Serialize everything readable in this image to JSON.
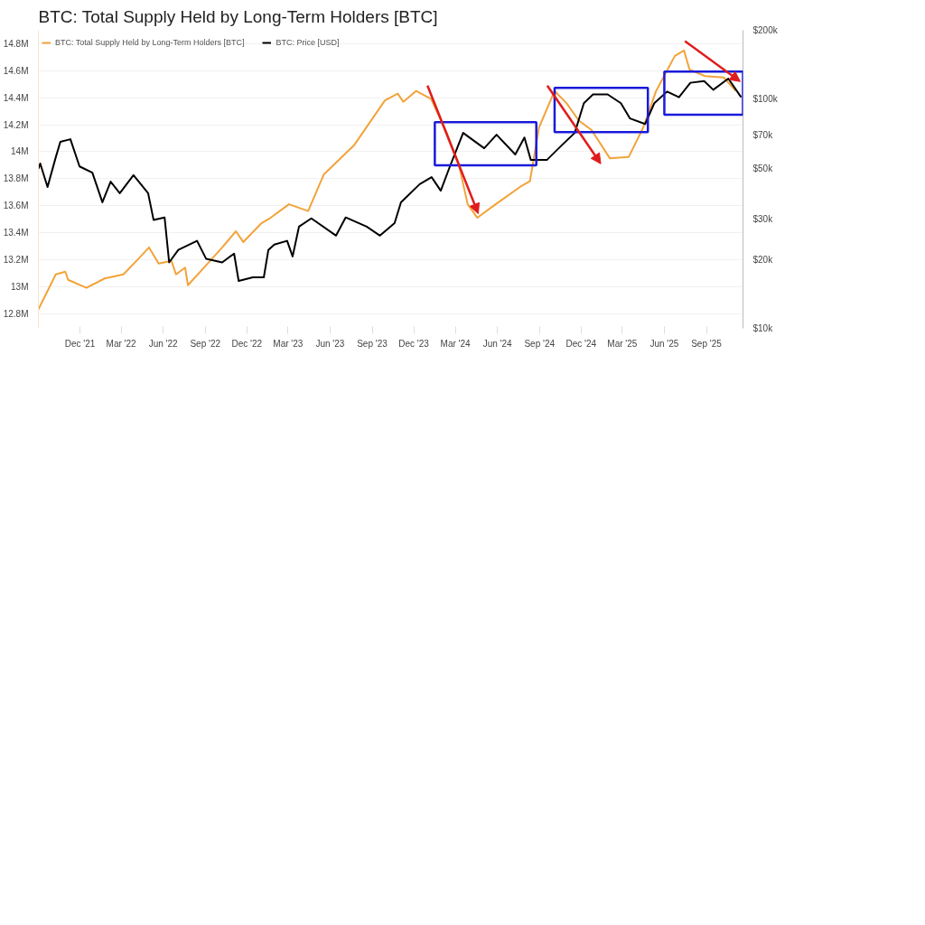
{
  "chart_data": {
    "type": "line",
    "title": "BTC: Total Supply Held by Long-Term Holders [BTC]",
    "xlim": [
      "2021-09-01",
      "2025-11-20"
    ],
    "xticks": [
      {
        "value": "2021-12-01",
        "label": "Dec '21"
      },
      {
        "value": "2022-03-01",
        "label": "Mar '22"
      },
      {
        "value": "2022-06-01",
        "label": "Jun '22"
      },
      {
        "value": "2022-09-01",
        "label": "Sep '22"
      },
      {
        "value": "2022-12-01",
        "label": "Dec '22"
      },
      {
        "value": "2023-03-01",
        "label": "Mar '23"
      },
      {
        "value": "2023-06-01",
        "label": "Jun '23"
      },
      {
        "value": "2023-09-01",
        "label": "Sep '23"
      },
      {
        "value": "2023-12-01",
        "label": "Dec '23"
      },
      {
        "value": "2024-03-01",
        "label": "Mar '24"
      },
      {
        "value": "2024-06-01",
        "label": "Jun '24"
      },
      {
        "value": "2024-09-01",
        "label": "Sep '24"
      },
      {
        "value": "2024-12-01",
        "label": "Dec '24"
      },
      {
        "value": "2025-03-01",
        "label": "Mar '25"
      },
      {
        "value": "2025-06-01",
        "label": "Jun '25"
      },
      {
        "value": "2025-09-01",
        "label": "Sep '25"
      }
    ],
    "ylim": [
      12690000,
      14900000
    ],
    "yticks": [
      {
        "value": 12800000,
        "label": "12.8M"
      },
      {
        "value": 13000000,
        "label": "13M"
      },
      {
        "value": 13200000,
        "label": "13.2M"
      },
      {
        "value": 13400000,
        "label": "13.4M"
      },
      {
        "value": 13600000,
        "label": "13.6M"
      },
      {
        "value": 13800000,
        "label": "13.8M"
      },
      {
        "value": 14000000,
        "label": "14M"
      },
      {
        "value": 14200000,
        "label": "14.2M"
      },
      {
        "value": 14400000,
        "label": "14.4M"
      },
      {
        "value": 14600000,
        "label": "14.6M"
      },
      {
        "value": 14800000,
        "label": "14.8M"
      }
    ],
    "y2lim": [
      10000,
      200000
    ],
    "y2ticks": [
      {
        "value": 10000,
        "label": "$10k"
      },
      {
        "value": 20000,
        "label": "$20k"
      },
      {
        "value": 30000,
        "label": "$30k"
      },
      {
        "value": 50000,
        "label": "$50k"
      },
      {
        "value": 70000,
        "label": "$70k"
      },
      {
        "value": 100000,
        "label": "$100k"
      },
      {
        "value": 200000,
        "label": "$200k"
      }
    ],
    "log": "y2",
    "grid": "y",
    "legend": "top left",
    "series": [
      {
        "name": "BTC: Total Supply Held by Long-Term Holders [BTC]",
        "color": "#f2a33a",
        "x": [
          "2021-09-01",
          "2021-10-09",
          "2021-10-30",
          "2021-11-05",
          "2021-12-15",
          "2022-01-24",
          "2022-03-06",
          "2022-04-09",
          "2022-05-01",
          "2022-05-22",
          "2022-06-19",
          "2022-06-29",
          "2022-07-19",
          "2022-07-25",
          "2022-08-29",
          "2022-10-08",
          "2022-11-07",
          "2022-11-23",
          "2023-01-02",
          "2023-01-22",
          "2023-03-03",
          "2023-04-14",
          "2023-05-18",
          "2023-07-24",
          "2023-09-29",
          "2023-10-27",
          "2023-11-08",
          "2023-12-06",
          "2024-01-08",
          "2024-02-11",
          "2024-03-08",
          "2024-03-28",
          "2024-04-18",
          "2024-05-28",
          "2024-07-21",
          "2024-08-11",
          "2024-08-31",
          "2024-10-04",
          "2024-10-30",
          "2024-11-26",
          "2024-12-24",
          "2025-02-02",
          "2025-03-15",
          "2025-04-16",
          "2025-05-14",
          "2025-06-24",
          "2025-07-14",
          "2025-07-26",
          "2025-08-29",
          "2025-10-09",
          "2025-11-04"
        ],
        "values": [
          12830000,
          13090000,
          13110000,
          13050000,
          12990000,
          13060000,
          13090000,
          13210000,
          13290000,
          13170000,
          13190000,
          13090000,
          13140000,
          13010000,
          13140000,
          13290000,
          13410000,
          13330000,
          13470000,
          13510000,
          13610000,
          13560000,
          13830000,
          14050000,
          14380000,
          14430000,
          14370000,
          14450000,
          14390000,
          14140000,
          13910000,
          13610000,
          13510000,
          13610000,
          13740000,
          13780000,
          14180000,
          14450000,
          14360000,
          14230000,
          14160000,
          13950000,
          13960000,
          14180000,
          14450000,
          14710000,
          14750000,
          14610000,
          14560000,
          14550000,
          14450000
        ]
      },
      {
        "name": "BTC: Price [USD]",
        "color": "#000000",
        "axis": "y2",
        "x": [
          "2021-09-01",
          "2021-09-05",
          "2021-09-21",
          "2021-10-09",
          "2021-10-19",
          "2021-11-10",
          "2021-11-30",
          "2021-12-28",
          "2022-01-19",
          "2022-02-06",
          "2022-02-26",
          "2022-03-28",
          "2022-04-29",
          "2022-05-11",
          "2022-06-04",
          "2022-06-14",
          "2022-07-04",
          "2022-08-14",
          "2022-09-03",
          "2022-10-08",
          "2022-11-03",
          "2022-11-13",
          "2022-12-14",
          "2023-01-07",
          "2023-01-17",
          "2023-01-30",
          "2023-02-27",
          "2023-03-11",
          "2023-03-25",
          "2023-04-21",
          "2023-06-14",
          "2023-07-05",
          "2023-08-20",
          "2023-09-18",
          "2023-10-20",
          "2023-11-03",
          "2023-12-14",
          "2024-01-09",
          "2024-01-29",
          "2024-02-18",
          "2024-03-18",
          "2024-05-03",
          "2024-05-30",
          "2024-07-10",
          "2024-07-30",
          "2024-08-13",
          "2024-09-17",
          "2024-10-19",
          "2024-11-17",
          "2024-12-07",
          "2024-12-27",
          "2025-01-28",
          "2025-02-26",
          "2025-03-18",
          "2025-04-20",
          "2025-05-10",
          "2025-06-07",
          "2025-07-03",
          "2025-07-28",
          "2025-08-27",
          "2025-09-16",
          "2025-10-19",
          "2025-11-16"
        ],
        "values": [
          49700,
          52400,
          41400,
          55800,
          65200,
          66900,
          50900,
          47800,
          35500,
          43700,
          38900,
          46600,
          38900,
          29700,
          30500,
          19400,
          22000,
          24100,
          20100,
          19400,
          21200,
          16100,
          16700,
          16700,
          22000,
          23200,
          24100,
          20600,
          27800,
          30200,
          25400,
          30500,
          27800,
          25400,
          28800,
          35500,
          42600,
          45700,
          39900,
          50900,
          71300,
          61100,
          70000,
          57400,
          68100,
          54300,
          54300,
          62800,
          71300,
          96100,
          105000,
          105000,
          96100,
          82400,
          78000,
          96100,
          108000,
          102000,
          118000,
          120000,
          110000,
          123000,
          102000
        ]
      }
    ]
  }
}
